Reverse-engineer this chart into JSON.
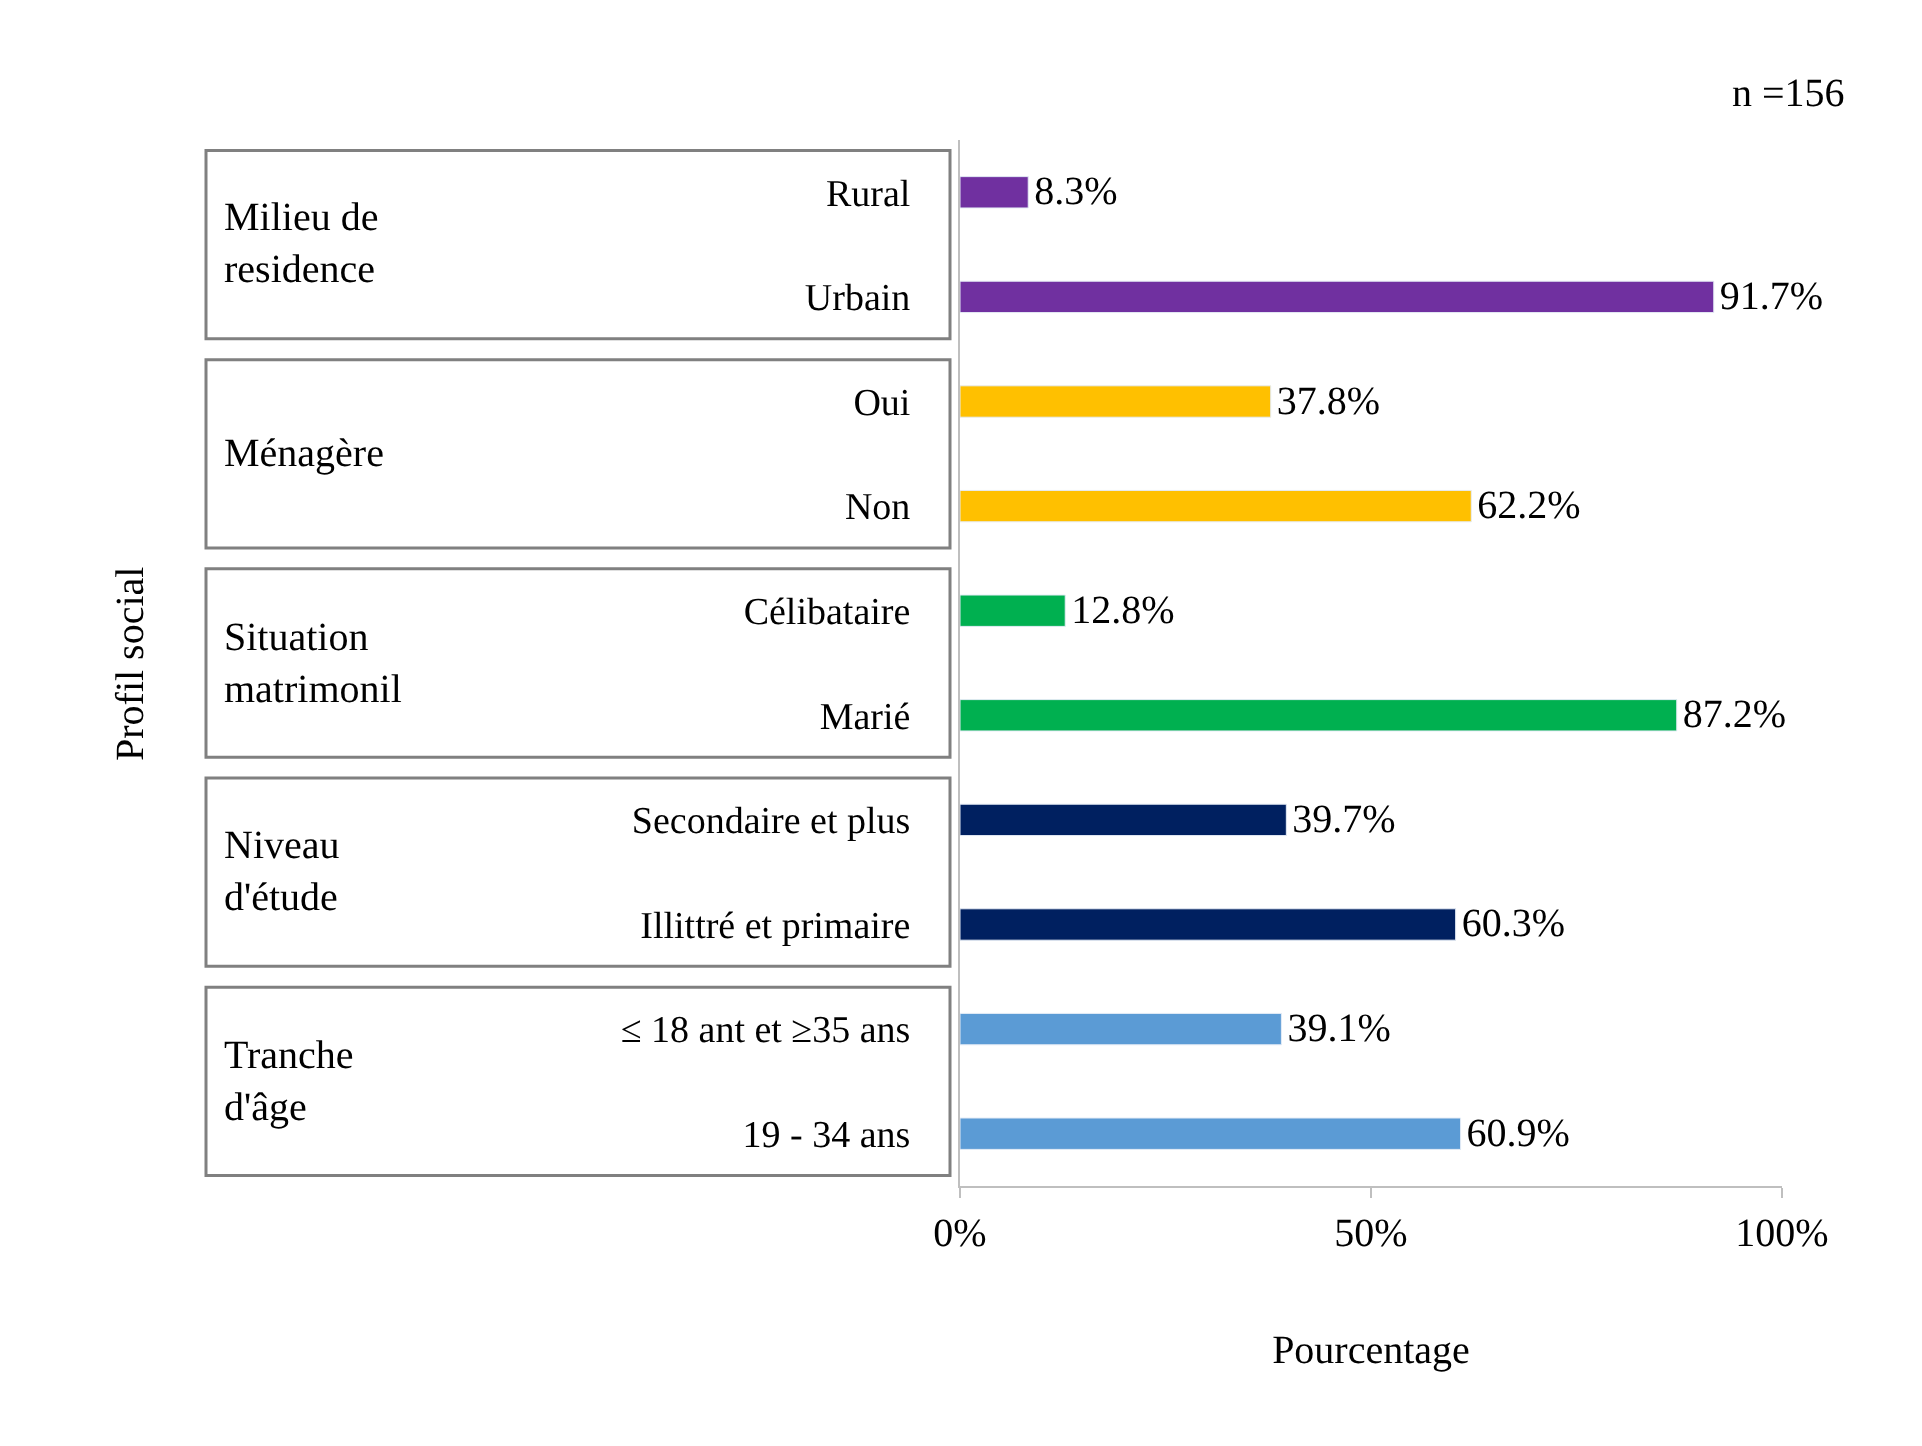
{
  "chart_data": {
    "type": "bar",
    "orientation": "horizontal",
    "xlabel": "Pourcentage",
    "categories": [
      "Rural",
      "Urbain",
      "Oui",
      "Non",
      "Célibataire",
      "Marié",
      "Secondaire et plus",
      "Illittré et primaire",
      "≤ 18 ant et ≥35 ans",
      "19 - 34 ans"
    ],
    "values": [
      8.3,
      91.7,
      37.8,
      62.2,
      12.8,
      87.2,
      39.7,
      60.3,
      39.1,
      60.9
    ],
    "value_labels": [
      "8.3%",
      "91.7%",
      "37.8%",
      "62.2%",
      "12.8%",
      "87.2%",
      "39.7%",
      "60.3%",
      "39.1%",
      "60.9%"
    ],
    "colors": [
      "#7030a0",
      "#7030a0",
      "#ffc000",
      "#ffc000",
      "#00b050",
      "#00b050",
      "#002060",
      "#002060",
      "#5b9bd5",
      "#5b9bd5"
    ],
    "xlim": [
      0,
      100
    ],
    "xticks": [
      {
        "value": 0,
        "label": "0%"
      },
      {
        "value": 50,
        "label": "50%"
      },
      {
        "value": 100,
        "label": "100%"
      }
    ],
    "annotations": [
      "Milieu de residence",
      "Ménagère",
      "Situation matrimonil",
      "Niveau d'étude",
      "Tranche d'âge",
      "n =156",
      "Profil social"
    ]
  }
}
